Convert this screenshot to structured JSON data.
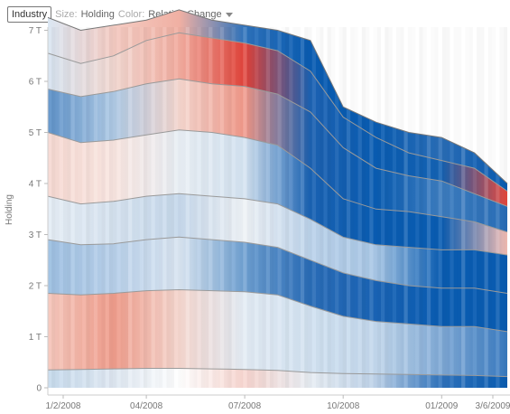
{
  "toolbar": {
    "industry_label": "Industry",
    "size_label": "Size:",
    "size_value": "Holding",
    "color_label": "Color:",
    "color_value": "Relative Change"
  },
  "chart_data": {
    "type": "area",
    "subtype": "streamgraph",
    "ylabel": "Holding",
    "y_unit": "T",
    "ylim": [
      0,
      7.5
    ],
    "y_ticks": [
      "0",
      "1 T",
      "2 T",
      "3 T",
      "4 T",
      "5 T",
      "6 T",
      "7 T"
    ],
    "x_ticks": [
      "1/2/2008",
      "04/2008",
      "07/2008",
      "10/2008",
      "01/2009",
      "3/6/2009"
    ],
    "color_scale": {
      "negative": "#e83a30",
      "neutral": "#f3f3f3",
      "positive": "#0a5db3"
    },
    "x_dates": [
      "1/2/2008",
      "2/2008",
      "3/2008",
      "04/2008",
      "5/2008",
      "6/2008",
      "07/2008",
      "8/2008",
      "9/2008",
      "10/2008",
      "11/2008",
      "12/2008",
      "01/2009",
      "2/2009",
      "3/6/2009"
    ],
    "stack_tops": [
      {
        "name": "b1",
        "values": [
          0.35,
          0.36,
          0.37,
          0.38,
          0.38,
          0.37,
          0.36,
          0.34,
          0.3,
          0.28,
          0.27,
          0.26,
          0.25,
          0.24,
          0.22
        ]
      },
      {
        "name": "b2",
        "values": [
          1.85,
          1.82,
          1.85,
          1.9,
          1.92,
          1.9,
          1.88,
          1.82,
          1.6,
          1.4,
          1.3,
          1.25,
          1.2,
          1.2,
          1.1
        ]
      },
      {
        "name": "b3",
        "values": [
          2.9,
          2.8,
          2.82,
          2.9,
          2.95,
          2.9,
          2.85,
          2.75,
          2.5,
          2.25,
          2.1,
          2.0,
          1.95,
          1.95,
          1.85
        ]
      },
      {
        "name": "b4",
        "values": [
          3.75,
          3.6,
          3.65,
          3.75,
          3.8,
          3.75,
          3.7,
          3.6,
          3.3,
          2.95,
          2.8,
          2.75,
          2.7,
          2.7,
          2.6
        ]
      },
      {
        "name": "b5",
        "values": [
          5.0,
          4.8,
          4.85,
          4.95,
          5.05,
          5.0,
          4.9,
          4.75,
          4.3,
          3.7,
          3.5,
          3.45,
          3.35,
          3.25,
          3.05
        ]
      },
      {
        "name": "b6",
        "values": [
          5.85,
          5.7,
          5.8,
          5.95,
          6.05,
          5.95,
          5.9,
          5.75,
          5.4,
          4.7,
          4.3,
          4.15,
          4.05,
          3.8,
          3.55
        ]
      },
      {
        "name": "b7",
        "values": [
          6.55,
          6.35,
          6.5,
          6.8,
          6.95,
          6.85,
          6.75,
          6.6,
          6.2,
          5.3,
          4.9,
          4.6,
          4.45,
          4.3,
          3.85
        ]
      },
      {
        "name": "b8",
        "values": [
          7.25,
          7.0,
          7.1,
          7.2,
          7.4,
          7.2,
          7.1,
          7.0,
          6.8,
          5.5,
          5.2,
          5.0,
          4.9,
          4.6,
          4.0
        ]
      }
    ],
    "band_colors": [
      [
        "#c8dcee",
        "#dfe8f2",
        "#ffffff",
        "#f7d5cf",
        "#e8eef4",
        "#bcd1e8",
        "#2f73bd",
        "#0a5db3"
      ],
      [
        "#f6c8bd",
        "#f09d8c",
        "#f5d7cf",
        "#e3ecf5",
        "#d2e2f1",
        "#c2d7ec",
        "#7fa9d6",
        "#3a7cc2"
      ],
      [
        "#9ec0e2",
        "#b8d0ea",
        "#dae6f2",
        "#6d9fd1",
        "#2a6db8",
        "#1a64b6",
        "#0a5db3",
        "#0a5db3"
      ],
      [
        "#e6eef6",
        "#d6e3f0",
        "#c7d9ec",
        "#eef2f6",
        "#bcd3eb",
        "#a7c6e5",
        "#0a5db3",
        "#0a5db3"
      ],
      [
        "#f7dad3",
        "#f9e6e1",
        "#e9eff5",
        "#d4e3f1",
        "#1a63b4",
        "#0a5db3",
        "#0a5db3",
        "#f7c0b6"
      ],
      [
        "#5f93ca",
        "#b0cbe6",
        "#f5d7cf",
        "#f09788",
        "#1d62b2",
        "#0a5db3",
        "#3d7dc0",
        "#2a6fb9"
      ],
      [
        "#d7e4f1",
        "#f2d8d1",
        "#f3ada0",
        "#e1433a",
        "#1d63b4",
        "#0a5db3",
        "#1563b4",
        "#e94a3e"
      ],
      [
        "#dbe7f3",
        "#f4cbc2",
        "#f0b0a3",
        "#2e73bd",
        "#0a5db3",
        "#0a5db3",
        "#2a6eb8",
        "#0a5db3"
      ]
    ],
    "grid": false,
    "legend": "none"
  }
}
